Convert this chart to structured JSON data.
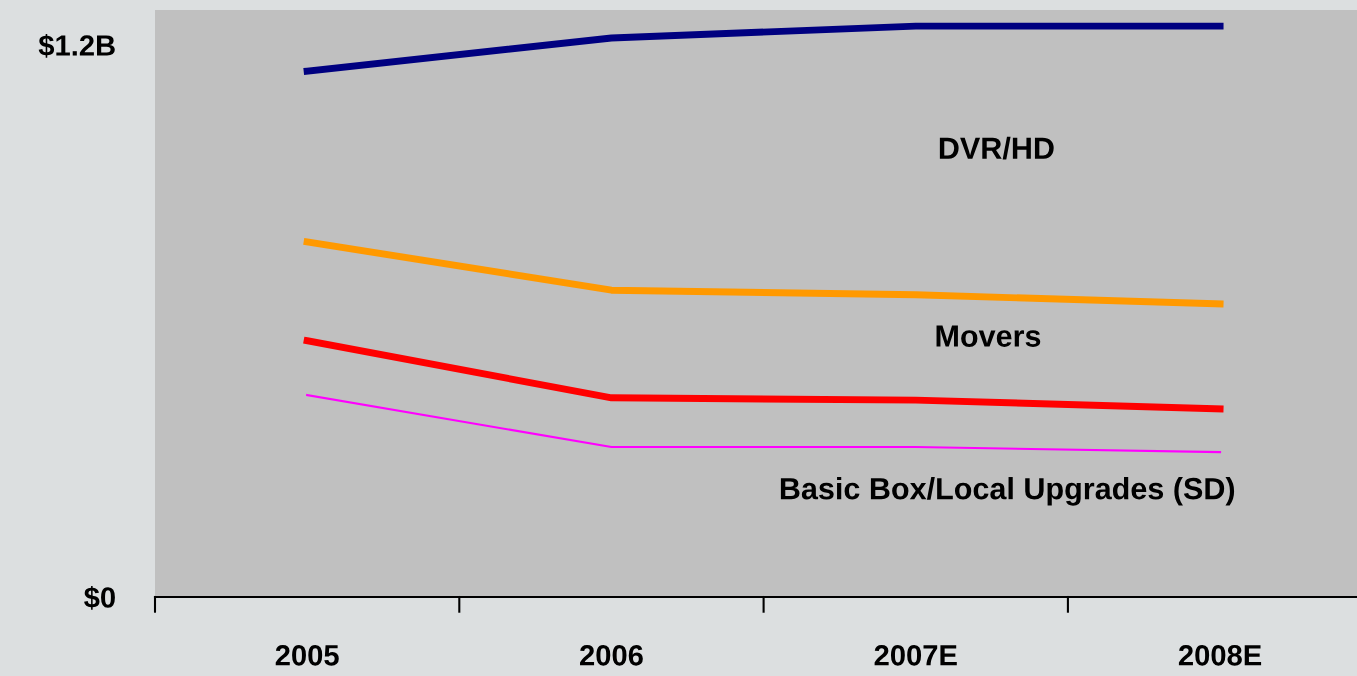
{
  "chart_data": {
    "type": "line",
    "categories": [
      "2005",
      "2006",
      "2007E",
      "2008E"
    ],
    "series": [
      {
        "color": "#000080",
        "values": [
          1.143,
          1.215,
          1.241,
          1.241
        ]
      },
      {
        "color": "#ff9900",
        "values": [
          0.772,
          0.667,
          0.657,
          0.637
        ]
      },
      {
        "color": "#ff0000",
        "values": [
          0.557,
          0.433,
          0.428,
          0.409
        ]
      },
      {
        "color": "#ff00ff",
        "values": [
          0.439,
          0.326,
          0.326,
          0.315
        ]
      }
    ],
    "ylim": [
      0,
      1.276
    ],
    "yticks": [
      {
        "value": 0,
        "label": "$0"
      },
      {
        "value": 1.2,
        "label": "$1.2B"
      }
    ],
    "annotations": [
      "DVR/HD",
      "Movers",
      "Basic Box/Local Upgrades (SD)"
    ],
    "grid": false,
    "legend": false,
    "marker": "none",
    "line_style": "solid"
  }
}
